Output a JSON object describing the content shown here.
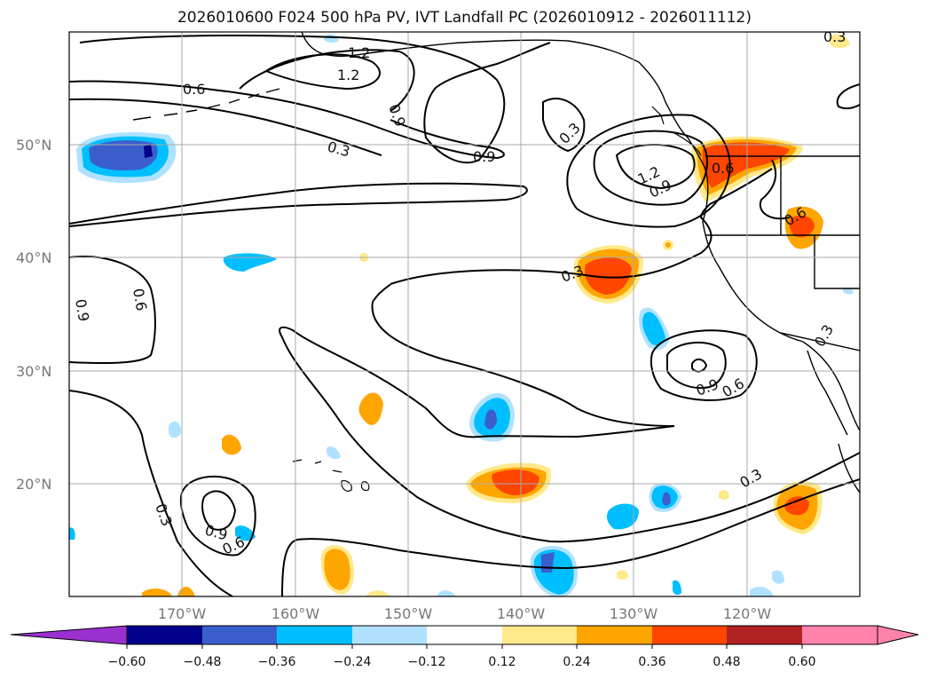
{
  "title": "2026010600 F024 500 hPa PV, IVT Landfall PC (2026010912 - 2026011112)",
  "map": {
    "lon_labels": [
      "170°W",
      "160°W",
      "150°W",
      "140°W",
      "130°W",
      "120°W"
    ],
    "lat_labels": [
      "50°N",
      "40°N",
      "30°N",
      "20°N"
    ],
    "contour_labels": [
      {
        "id": "c1",
        "text": "0.6"
      },
      {
        "id": "c2",
        "text": "1.2"
      },
      {
        "id": "c3",
        "text": "1.2"
      },
      {
        "id": "c4",
        "text": "0.9"
      },
      {
        "id": "c5",
        "text": "0.3"
      },
      {
        "id": "c6",
        "text": "0.9"
      },
      {
        "id": "c7",
        "text": "0.3"
      },
      {
        "id": "c8",
        "text": "1.2"
      },
      {
        "id": "c9",
        "text": "0.9"
      },
      {
        "id": "c10",
        "text": "0.6"
      },
      {
        "id": "c11",
        "text": "0.3"
      },
      {
        "id": "c12",
        "text": "0.6"
      },
      {
        "id": "c13",
        "text": "0.6"
      },
      {
        "id": "c14",
        "text": "0.9"
      },
      {
        "id": "c15",
        "text": "0.3"
      },
      {
        "id": "c16",
        "text": "0.9"
      },
      {
        "id": "c17",
        "text": "0.6"
      },
      {
        "id": "c18",
        "text": "0.3"
      },
      {
        "id": "c19",
        "text": "0.3"
      },
      {
        "id": "c20",
        "text": "0.9"
      },
      {
        "id": "c21",
        "text": "0.6"
      },
      {
        "id": "c22",
        "text": "0.3"
      }
    ]
  },
  "colorbar": {
    "ticks": [
      "−0.60",
      "−0.48",
      "−0.36",
      "−0.24",
      "−0.12",
      "0.12",
      "0.24",
      "0.36",
      "0.48",
      "0.60"
    ],
    "colors": [
      "#9b30d0",
      "#00008b",
      "#3a5fcd",
      "#00bfff",
      "#b0e2ff",
      "#ffffff",
      "#ffe98a",
      "#ffa500",
      "#ff4500",
      "#b22222",
      "#ff82ab",
      "#ff82ab"
    ]
  },
  "colors": {
    "deep_blue": "#00008b",
    "mid_blue": "#3a5fcd",
    "cyan": "#00bfff",
    "light_blue": "#b0e2ff",
    "yellow": "#ffe98a",
    "orange": "#ffa500",
    "red_orange": "#ff4500",
    "dark_red": "#b22222",
    "pink": "#ff82ab",
    "purple": "#9b30d0"
  }
}
